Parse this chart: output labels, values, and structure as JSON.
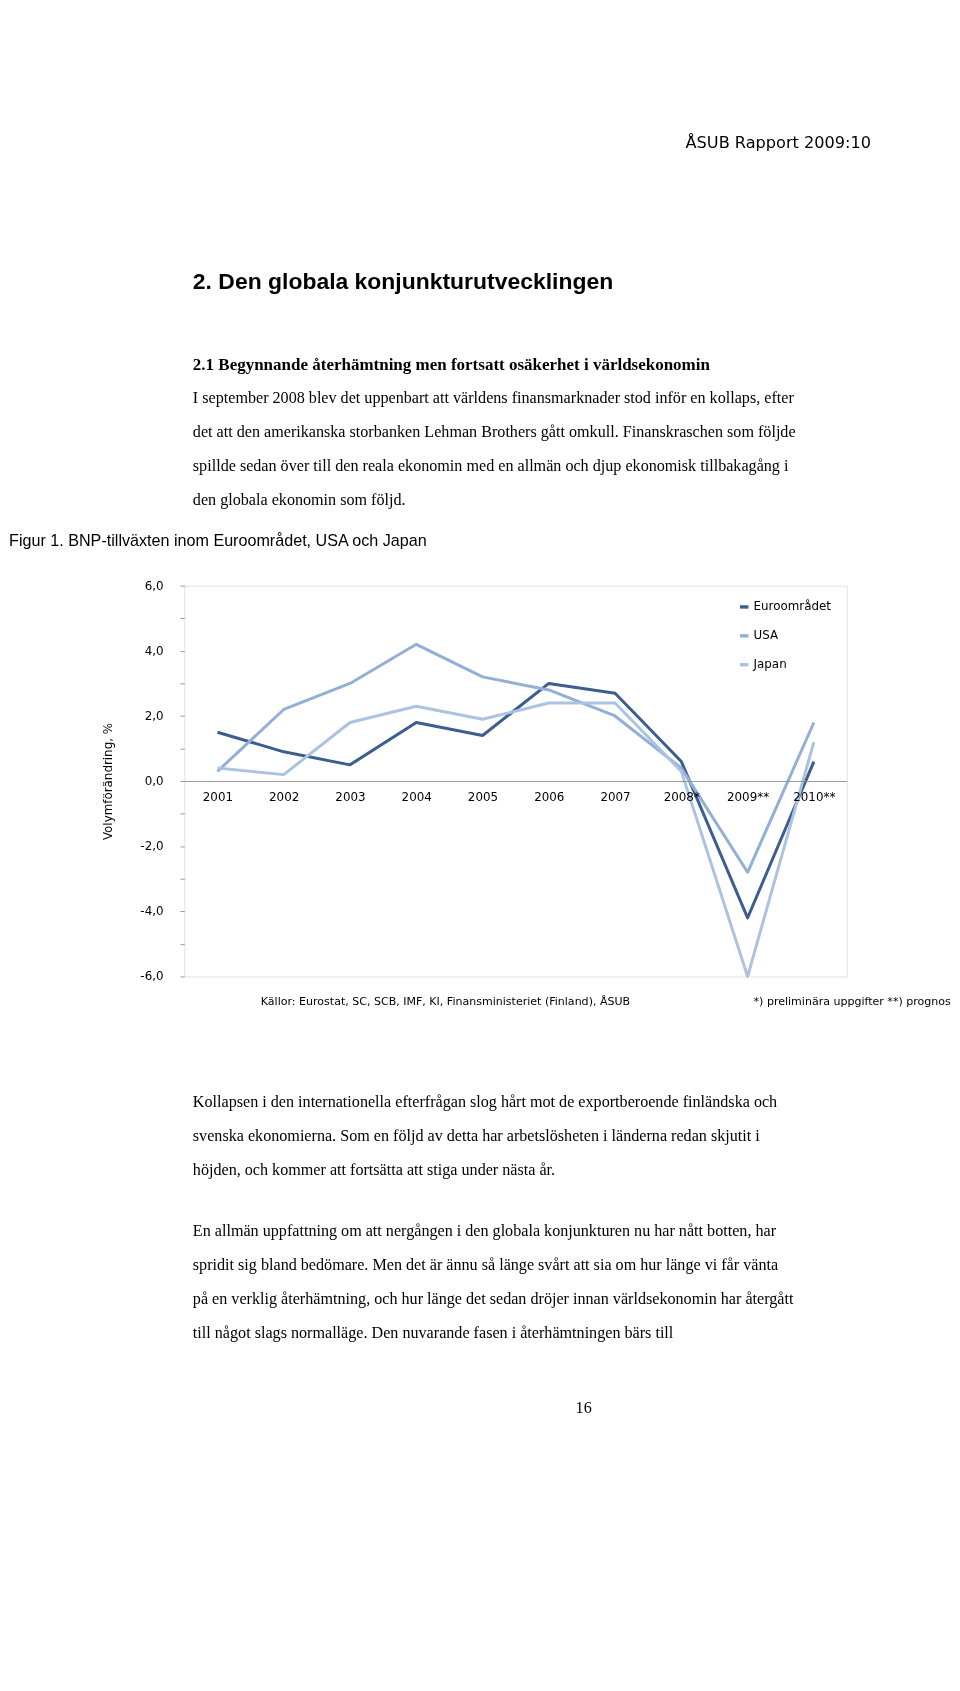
{
  "chart_data": {
    "type": "line",
    "title": "Figur 1. BNP-tillväxten inom Euroområdet, USA och Japan",
    "ylabel": "Volymförändring, %",
    "categories": [
      "2001",
      "2002",
      "2003",
      "2004",
      "2005",
      "2006",
      "2007",
      "2008*",
      "2009**",
      "2010**"
    ],
    "series": [
      {
        "name": "Euroområdet",
        "color": "#3b5d8f",
        "values": [
          1.5,
          0.9,
          0.5,
          1.8,
          1.4,
          3.0,
          2.7,
          0.6,
          -4.2,
          0.6
        ]
      },
      {
        "name": "USA",
        "color": "#93afd6",
        "values": [
          0.3,
          2.2,
          3.0,
          4.2,
          3.2,
          2.8,
          2.0,
          0.4,
          -2.8,
          1.8
        ]
      },
      {
        "name": "Japan",
        "color": "#abc2e0",
        "values": [
          0.4,
          0.2,
          1.8,
          2.3,
          1.9,
          2.4,
          2.4,
          0.3,
          -6.0,
          1.2
        ]
      }
    ],
    "ylim": [
      -6,
      6
    ],
    "yticks": [
      {
        "value": -6,
        "label": "-6,0"
      },
      {
        "value": -5,
        "label": null
      },
      {
        "value": -4,
        "label": "-4,0"
      },
      {
        "value": -3,
        "label": null
      },
      {
        "value": -2,
        "label": "-2,0"
      },
      {
        "value": -1,
        "label": null
      },
      {
        "value": 0,
        "label": "0,0"
      },
      {
        "value": 1,
        "label": null
      },
      {
        "value": 2,
        "label": "2,0"
      },
      {
        "value": 3,
        "label": null
      },
      {
        "value": 4,
        "label": "4,0"
      },
      {
        "value": 5,
        "label": null
      },
      {
        "value": 6,
        "label": "6,0"
      }
    ],
    "grid": false,
    "legend": "top right",
    "annotations": [
      "ÅSUB Rapport 2009:10",
      "2.  Den globala konjunkturutvecklingen",
      "2.1  Begynnande återhämtning men fortsatt osäkerhet i världsekonomin",
      "I september 2008 blev det uppenbart att världens finansmarknader stod inför en kollaps, efter det att den amerikanska storbanken Lehman Brothers gått omkull. Finanskraschen som följde spillde sedan över till den reala ekonomin med en allmän och djup ekonomisk tillbakagång i den globala ekonomin som följd.",
      "Källor: Eurostat, SC, SCB, IMF, KI, Finansministeriet (Finland), ÅSUB",
      "*) preliminära uppgifter **) prognos",
      "Kollapsen i den internationella efterfrågan slog hårt mot de exportberoende finländska och svenska ekonomierna. Som en följd av detta har arbetslösheten i länderna redan skjutit i höjden, och kommer att fortsätta att stiga under nästa år.",
      "En allmän uppfattning om att nergången i den globala konjunkturen nu har nått botten, har spridit sig bland bedömare. Men det är ännu så länge svårt att sia om hur länge vi får vänta på en verklig återhämtning, och hur länge det sedan dröjer innan världsekonomin har återgått till något slags normalläge. Den nuvarande fasen i återhämtningen bärs till",
      "16"
    ]
  }
}
